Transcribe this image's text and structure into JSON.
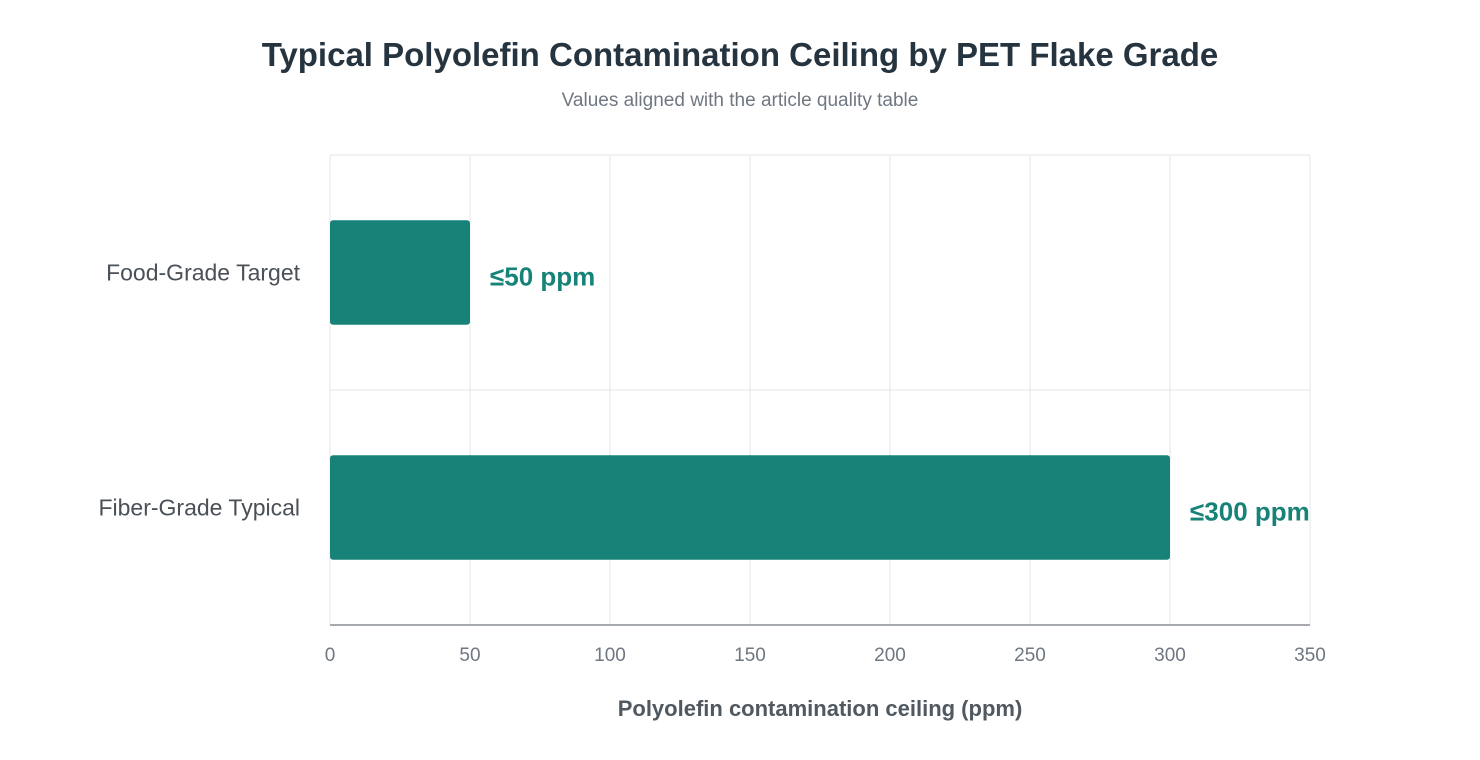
{
  "chart_data": {
    "type": "bar",
    "orientation": "horizontal",
    "title": "Typical Polyolefin Contamination Ceiling by PET Flake Grade",
    "subtitle": "Values aligned with the article quality table",
    "categories": [
      "Food-Grade Target",
      "Fiber-Grade Typical"
    ],
    "values": [
      50,
      300
    ],
    "data_labels": [
      "≤50 ppm",
      "≤300 ppm"
    ],
    "xlabel": "Polyolefin contamination ceiling (ppm)",
    "ylabel": "",
    "xlim": [
      0,
      350
    ],
    "xticks": [
      0,
      50,
      100,
      150,
      200,
      250,
      300,
      350
    ],
    "grid": true,
    "legend": "none",
    "colors": {
      "bar": "#178277",
      "data_label": "#178277",
      "grid": "#e3e5e8",
      "axis": "#8a8f95"
    }
  }
}
